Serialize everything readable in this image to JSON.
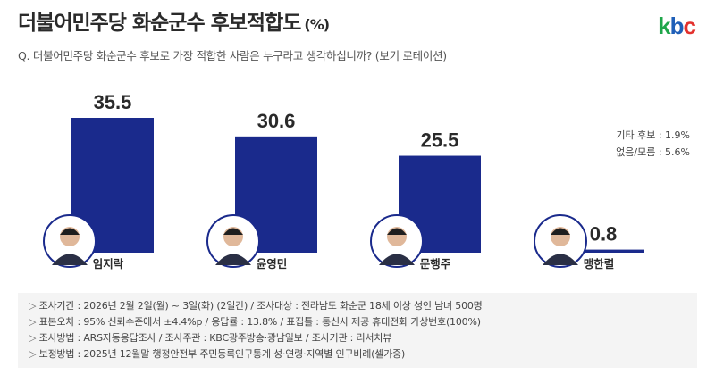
{
  "header": {
    "title": "더불어민주당 화순군수 후보적합도",
    "unit": "(%)",
    "logo": "kbc",
    "logo_colors": [
      "#1fa64a",
      "#1f5fb8",
      "#e3312d"
    ]
  },
  "question": "Q. 더불어민주당 화순군수 후보로 가장 적합한 사람은 누구라고 생각하십니까? (보기 로테이션)",
  "side_notes": [
    "기타 후보 : 1.9%",
    "없음/모름 : 5.6%"
  ],
  "chart_data": {
    "type": "bar",
    "title": "",
    "xlabel": "",
    "ylabel": "",
    "categories": [
      "임지락",
      "윤영민",
      "문행주",
      "맹한렬"
    ],
    "values": [
      35.5,
      30.6,
      25.5,
      0.8
    ],
    "value_labels": [
      "35.5",
      "30.6",
      "25.5",
      "0.8"
    ],
    "ylim": [
      0,
      40
    ],
    "grid": false,
    "bar_color": "#1a2a8c"
  },
  "footer": {
    "lines": [
      "조사기간 : 2026년 2월 2일(월) ~ 3일(화) (2일간) / 조사대상 : 전라남도 화순군 18세 이상 성인 남녀 500명",
      "표본오차 : 95% 신뢰수준에서 ±4.4%p / 응답률 : 13.8% / 표집틀 : 통신사 제공 휴대전화 가상번호(100%)",
      "조사방법 : ARS자동응답조사 / 조사주관 : KBC광주방송·광남일보 / 조사기관 : 리서치뷰",
      "보정방법 : 2025년 12월말 행정안전부 주민등록인구통계 성·연령·지역별 인구비례(셀가중)"
    ]
  }
}
